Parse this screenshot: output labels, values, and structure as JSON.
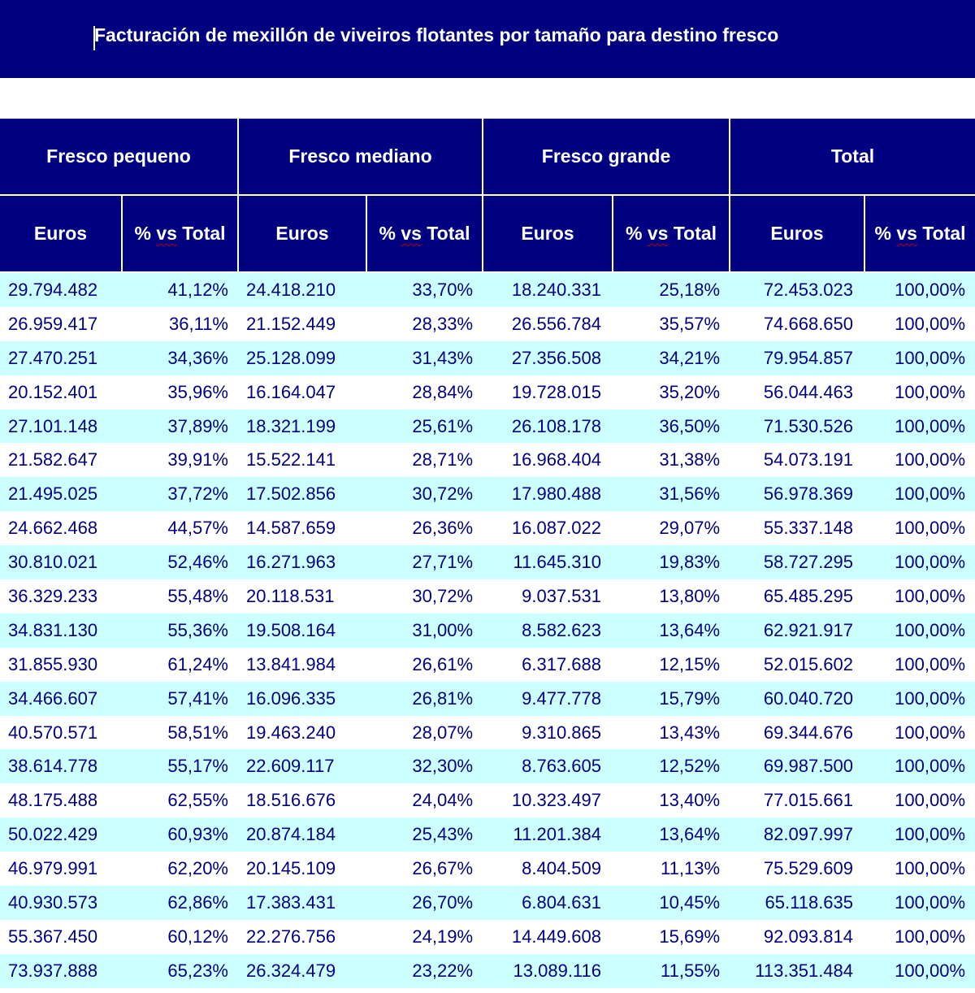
{
  "title": "Facturación de mexillón de viveiros flotantes por tamaño para destino fresco",
  "groups": [
    "Fresco pequeno",
    "Fresco mediano",
    "Fresco grande",
    "Total"
  ],
  "subheaders": {
    "euros": "Euros",
    "pct_prefix": "% ",
    "pct_vs": "vs",
    "pct_suffix": " Total"
  },
  "rows": [
    [
      "29.794.482",
      "41,12%",
      "24.418.210",
      "33,70%",
      "18.240.331",
      "25,18%",
      "72.453.023",
      "100,00%"
    ],
    [
      "26.959.417",
      "36,11%",
      "21.152.449",
      "28,33%",
      "26.556.784",
      "35,57%",
      "74.668.650",
      "100,00%"
    ],
    [
      "27.470.251",
      "34,36%",
      "25.128.099",
      "31,43%",
      "27.356.508",
      "34,21%",
      "79.954.857",
      "100,00%"
    ],
    [
      "20.152.401",
      "35,96%",
      "16.164.047",
      "28,84%",
      "19.728.015",
      "35,20%",
      "56.044.463",
      "100,00%"
    ],
    [
      "27.101.148",
      "37,89%",
      "18.321.199",
      "25,61%",
      "26.108.178",
      "36,50%",
      "71.530.526",
      "100,00%"
    ],
    [
      "21.582.647",
      "39,91%",
      "15.522.141",
      "28,71%",
      "16.968.404",
      "31,38%",
      "54.073.191",
      "100,00%"
    ],
    [
      "21.495.025",
      "37,72%",
      "17.502.856",
      "30,72%",
      "17.980.488",
      "31,56%",
      "56.978.369",
      "100,00%"
    ],
    [
      "24.662.468",
      "44,57%",
      "14.587.659",
      "26,36%",
      "16.087.022",
      "29,07%",
      "55.337.148",
      "100,00%"
    ],
    [
      "30.810.021",
      "52,46%",
      "16.271.963",
      "27,71%",
      "11.645.310",
      "19,83%",
      "58.727.295",
      "100,00%"
    ],
    [
      "36.329.233",
      "55,48%",
      "20.118.531",
      "30,72%",
      "9.037.531",
      "13,80%",
      "65.485.295",
      "100,00%"
    ],
    [
      "34.831.130",
      "55,36%",
      "19.508.164",
      "31,00%",
      "8.582.623",
      "13,64%",
      "62.921.917",
      "100,00%"
    ],
    [
      "31.855.930",
      "61,24%",
      "13.841.984",
      "26,61%",
      "6.317.688",
      "12,15%",
      "52.015.602",
      "100,00%"
    ],
    [
      "34.466.607",
      "57,41%",
      "16.096.335",
      "26,81%",
      "9.477.778",
      "15,79%",
      "60.040.720",
      "100,00%"
    ],
    [
      "40.570.571",
      "58,51%",
      "19.463.240",
      "28,07%",
      "9.310.865",
      "13,43%",
      "69.344.676",
      "100,00%"
    ],
    [
      "38.614.778",
      "55,17%",
      "22.609.117",
      "32,30%",
      "8.763.605",
      "12,52%",
      "69.987.500",
      "100,00%"
    ],
    [
      "48.175.488",
      "62,55%",
      "18.516.676",
      "24,04%",
      "10.323.497",
      "13,40%",
      "77.015.661",
      "100,00%"
    ],
    [
      "50.022.429",
      "60,93%",
      "20.874.184",
      "25,43%",
      "11.201.384",
      "13,64%",
      "82.097.997",
      "100,00%"
    ],
    [
      "46.979.991",
      "62,20%",
      "20.145.109",
      "26,67%",
      "8.404.509",
      "11,13%",
      "75.529.609",
      "100,00%"
    ],
    [
      "40.930.573",
      "62,86%",
      "17.383.431",
      "26,70%",
      "6.804.631",
      "10,45%",
      "65.118.635",
      "100,00%"
    ],
    [
      "55.367.450",
      "60,12%",
      "22.276.756",
      "24,19%",
      "14.449.608",
      "15,69%",
      "92.093.814",
      "100,00%"
    ],
    [
      "73.937.888",
      "65,23%",
      "26.324.479",
      "23,22%",
      "13.089.116",
      "11,55%",
      "113.351.484",
      "100,00%"
    ]
  ],
  "colors": {
    "header_bg": "#000080",
    "header_text": "#ffffff",
    "row_alt": "#ccffff",
    "text": "#000080"
  }
}
